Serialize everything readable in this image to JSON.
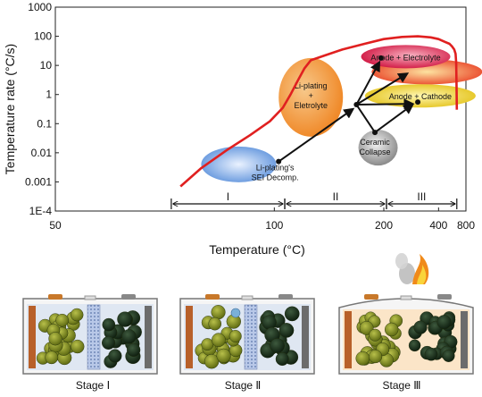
{
  "chart_data": {
    "type": "line",
    "xlabel": "Temperature (°C)",
    "ylabel": "Temperature rate (°C/s)",
    "x_scale": "reciprocal",
    "x_ticks": [
      50,
      100,
      200,
      400,
      800
    ],
    "y_scale": "log",
    "y_ticks": [
      "1E-4",
      "0.001",
      "0.01",
      "0.1",
      "1",
      "10",
      "100",
      "1000"
    ],
    "ylim": [
      0.0001,
      1000
    ],
    "series": [
      {
        "color": "#e02020",
        "x": [
          70,
          75,
          82,
          90,
          98,
          104,
          108,
          112,
          116,
          120,
          130,
          145,
          170,
          200,
          240,
          290,
          350,
          400,
          450,
          500,
          530,
          560,
          580,
          590,
          595,
          600
        ],
        "y": [
          0.0007,
          0.003,
          0.012,
          0.04,
          0.12,
          0.35,
          1.0,
          3,
          8,
          15,
          22,
          35,
          55,
          80,
          95,
          100,
          92,
          80,
          65,
          55,
          45,
          35,
          25,
          12,
          3,
          0.3
        ]
      }
    ],
    "stages": [
      {
        "label": "I",
        "from": 68,
        "to": 105
      },
      {
        "label": "II",
        "from": 105,
        "to": 205
      },
      {
        "label": "III",
        "from": 205,
        "to": 600
      }
    ],
    "annotations": [
      {
        "text": "Li-plating's SEI Decomp.",
        "x": 86,
        "y": 0.004,
        "color": "#7fa8e0"
      },
      {
        "text": "Li-plating + Eletrolyte",
        "x": 120,
        "y": 0.8,
        "color": "#f2a64a"
      },
      {
        "text": "Ceramic Collapse",
        "x": 190,
        "y": 0.015,
        "color": "#8c8c8c"
      },
      {
        "text": "Anode + Electrolyte",
        "x": 250,
        "y": 20,
        "color": "#d8204a"
      },
      {
        "text": "Anode + Cathode",
        "x": 300,
        "y": 0.9,
        "color": "#e8d020"
      }
    ]
  },
  "stages_panel": [
    {
      "caption": "Stage Ⅰ"
    },
    {
      "caption": "Stage Ⅱ"
    },
    {
      "caption": "Stage Ⅲ"
    }
  ]
}
